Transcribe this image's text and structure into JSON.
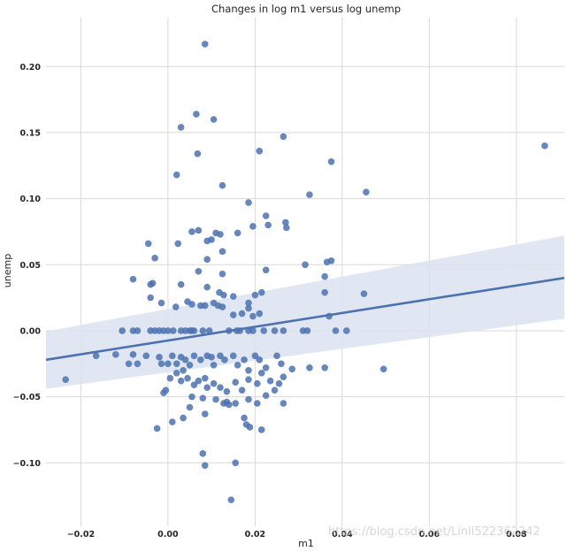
{
  "chart_data": {
    "type": "scatter",
    "title": "Changes in log m1 versus log unemp",
    "xlabel": "m1",
    "ylabel": "unemp",
    "xlim": [
      -0.028,
      0.091
    ],
    "ylim": [
      -0.148,
      0.237
    ],
    "xticks": [
      -0.02,
      0.0,
      0.02,
      0.04,
      0.06,
      0.08
    ],
    "xtick_labels": [
      "−0.02",
      "0.00",
      "0.02",
      "0.04",
      "0.06",
      "0.08"
    ],
    "yticks": [
      -0.1,
      -0.05,
      0.0,
      0.05,
      0.1,
      0.15,
      0.2
    ],
    "ytick_labels": [
      "−0.10",
      "−0.05",
      "0.00",
      "0.05",
      "0.10",
      "0.15",
      "0.20"
    ],
    "grid": true,
    "colors": {
      "points": "#4c72b0",
      "line": "#4c72b0",
      "band": "#dbe3f0",
      "grid": "#d9d9d9"
    },
    "regression": {
      "x": [
        -0.028,
        0.091
      ],
      "y": [
        -0.022,
        0.04
      ],
      "ci_upper": [
        -0.0005,
        0.072
      ],
      "ci_lower": [
        -0.044,
        0.009
      ]
    },
    "points": [
      [
        0.0085,
        0.217
      ],
      [
        0.0065,
        0.164
      ],
      [
        0.0105,
        0.16
      ],
      [
        0.003,
        0.154
      ],
      [
        0.0265,
        0.147
      ],
      [
        0.0865,
        0.14
      ],
      [
        0.0068,
        0.134
      ],
      [
        0.021,
        0.136
      ],
      [
        0.0375,
        0.128
      ],
      [
        0.002,
        0.118
      ],
      [
        0.0125,
        0.11
      ],
      [
        0.0325,
        0.103
      ],
      [
        0.0455,
        0.105
      ],
      [
        0.0185,
        0.097
      ],
      [
        0.0225,
        0.087
      ],
      [
        0.027,
        0.082
      ],
      [
        0.023,
        0.08
      ],
      [
        0.0195,
        0.079
      ],
      [
        0.0272,
        0.078
      ],
      [
        0.0055,
        0.075
      ],
      [
        0.007,
        0.076
      ],
      [
        0.011,
        0.074
      ],
      [
        0.012,
        0.073
      ],
      [
        0.016,
        0.074
      ],
      [
        0.009,
        0.068
      ],
      [
        0.01,
        0.069
      ],
      [
        0.0023,
        0.066
      ],
      [
        -0.0045,
        0.066
      ],
      [
        -0.003,
        0.055
      ],
      [
        0.009,
        0.054
      ],
      [
        0.0125,
        0.06
      ],
      [
        0.007,
        0.045
      ],
      [
        0.0125,
        0.043
      ],
      [
        0.0225,
        0.046
      ],
      [
        0.0315,
        0.05
      ],
      [
        0.0365,
        0.052
      ],
      [
        0.0375,
        0.053
      ],
      [
        -0.008,
        0.039
      ],
      [
        -0.0035,
        0.036
      ],
      [
        -0.004,
        0.035
      ],
      [
        0.003,
        0.035
      ],
      [
        0.009,
        0.033
      ],
      [
        0.0118,
        0.029
      ],
      [
        0.0128,
        0.027
      ],
      [
        0.015,
        0.026
      ],
      [
        0.0185,
        0.021
      ],
      [
        0.02,
        0.027
      ],
      [
        0.0215,
        0.029
      ],
      [
        0.036,
        0.041
      ],
      [
        0.036,
        0.029
      ],
      [
        0.045,
        0.028
      ],
      [
        -0.004,
        0.025
      ],
      [
        -0.0015,
        0.021
      ],
      [
        0.0018,
        0.018
      ],
      [
        0.0045,
        0.022
      ],
      [
        0.0055,
        0.02
      ],
      [
        0.0075,
        0.019
      ],
      [
        0.0085,
        0.019
      ],
      [
        0.0105,
        0.021
      ],
      [
        0.0115,
        0.019
      ],
      [
        0.0125,
        0.018
      ],
      [
        0.0185,
        0.017
      ],
      [
        0.015,
        0.012
      ],
      [
        0.017,
        0.013
      ],
      [
        0.0195,
        0.011
      ],
      [
        0.021,
        0.013
      ],
      [
        0.037,
        0.011
      ],
      [
        -0.0105,
        0.0
      ],
      [
        -0.008,
        0.0
      ],
      [
        -0.007,
        0.0
      ],
      [
        -0.004,
        0.0
      ],
      [
        -0.003,
        0.0
      ],
      [
        -0.002,
        0.0
      ],
      [
        -0.001,
        0.0
      ],
      [
        0.0,
        0.0
      ],
      [
        0.0012,
        0.0
      ],
      [
        0.003,
        0.0
      ],
      [
        0.004,
        0.0
      ],
      [
        0.005,
        0.0
      ],
      [
        0.0055,
        0.0
      ],
      [
        0.006,
        0.0
      ],
      [
        0.008,
        0.0
      ],
      [
        0.0095,
        0.0
      ],
      [
        0.014,
        0.0
      ],
      [
        0.0158,
        0.0
      ],
      [
        0.0165,
        0.0
      ],
      [
        0.0185,
        0.0
      ],
      [
        0.0195,
        0.0
      ],
      [
        0.022,
        0.0
      ],
      [
        0.0245,
        0.0
      ],
      [
        0.0265,
        0.0
      ],
      [
        0.031,
        0.0
      ],
      [
        0.032,
        0.0
      ],
      [
        0.0385,
        0.0
      ],
      [
        0.041,
        0.0
      ],
      [
        -0.0235,
        -0.037
      ],
      [
        -0.0165,
        -0.019
      ],
      [
        -0.012,
        -0.018
      ],
      [
        -0.009,
        -0.025
      ],
      [
        -0.008,
        -0.018
      ],
      [
        -0.007,
        -0.025
      ],
      [
        -0.005,
        -0.019
      ],
      [
        -0.002,
        -0.02
      ],
      [
        -0.0015,
        -0.025
      ],
      [
        0.0,
        -0.025
      ],
      [
        0.001,
        -0.019
      ],
      [
        0.002,
        -0.025
      ],
      [
        0.003,
        -0.02
      ],
      [
        0.0035,
        -0.03
      ],
      [
        0.004,
        -0.022
      ],
      [
        0.005,
        -0.026
      ],
      [
        0.006,
        -0.019
      ],
      [
        0.0075,
        -0.022
      ],
      [
        0.009,
        -0.019
      ],
      [
        0.01,
        -0.02
      ],
      [
        0.0105,
        -0.026
      ],
      [
        0.012,
        -0.019
      ],
      [
        0.013,
        -0.022
      ],
      [
        0.015,
        -0.019
      ],
      [
        0.016,
        -0.026
      ],
      [
        0.0175,
        -0.022
      ],
      [
        0.0185,
        -0.03
      ],
      [
        0.02,
        -0.019
      ],
      [
        0.021,
        -0.022
      ],
      [
        0.0225,
        -0.028
      ],
      [
        0.025,
        -0.019
      ],
      [
        0.026,
        -0.025
      ],
      [
        0.0285,
        -0.029
      ],
      [
        0.0325,
        -0.028
      ],
      [
        0.036,
        -0.028
      ],
      [
        0.0495,
        -0.029
      ],
      [
        -0.0005,
        -0.045
      ],
      [
        -0.001,
        -0.047
      ],
      [
        0.0005,
        -0.036
      ],
      [
        0.002,
        -0.032
      ],
      [
        0.003,
        -0.038
      ],
      [
        0.0045,
        -0.036
      ],
      [
        0.006,
        -0.041
      ],
      [
        0.007,
        -0.038
      ],
      [
        0.0085,
        -0.036
      ],
      [
        0.009,
        -0.043
      ],
      [
        0.0105,
        -0.04
      ],
      [
        0.012,
        -0.043
      ],
      [
        0.0135,
        -0.046
      ],
      [
        0.0155,
        -0.039
      ],
      [
        0.017,
        -0.045
      ],
      [
        0.0185,
        -0.037
      ],
      [
        0.0205,
        -0.04
      ],
      [
        0.0215,
        -0.032
      ],
      [
        0.0235,
        -0.038
      ],
      [
        0.0245,
        -0.045
      ],
      [
        0.0255,
        -0.04
      ],
      [
        0.0265,
        -0.035
      ],
      [
        0.0055,
        -0.05
      ],
      [
        0.008,
        -0.051
      ],
      [
        0.011,
        -0.052
      ],
      [
        0.0128,
        -0.055
      ],
      [
        0.0135,
        -0.054
      ],
      [
        0.0155,
        -0.055
      ],
      [
        0.0185,
        -0.052
      ],
      [
        0.0205,
        -0.055
      ],
      [
        0.0225,
        -0.049
      ],
      [
        0.0265,
        -0.055
      ],
      [
        -0.0025,
        -0.074
      ],
      [
        0.001,
        -0.069
      ],
      [
        0.0035,
        -0.066
      ],
      [
        0.005,
        -0.058
      ],
      [
        0.0085,
        -0.063
      ],
      [
        0.014,
        -0.056
      ],
      [
        0.0175,
        -0.066
      ],
      [
        0.018,
        -0.071
      ],
      [
        0.0188,
        -0.073
      ],
      [
        0.0215,
        -0.075
      ],
      [
        0.008,
        -0.093
      ],
      [
        0.0085,
        -0.102
      ],
      [
        0.0155,
        -0.1
      ],
      [
        0.0145,
        -0.128
      ]
    ]
  },
  "watermark": "https://blog.csdn.net/Linli522362242"
}
